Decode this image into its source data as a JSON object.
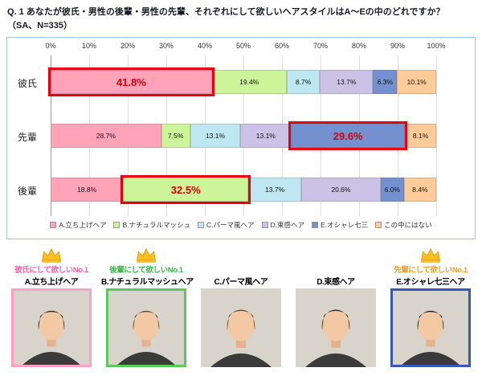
{
  "title": {
    "line1": "Q. 1 あなたが彼氏・男性の後輩・男性の先輩、それぞれにして欲しいヘアスタイルはA～Eの中のどれですか？",
    "line2": "（SA、N=335）"
  },
  "chart_data": {
    "type": "bar",
    "orientation": "horizontal_stacked",
    "x_ticks": [
      "0%",
      "10%",
      "20%",
      "30%",
      "40%",
      "50%",
      "60%",
      "70%",
      "80%",
      "90%",
      "100%"
    ],
    "xlim": [
      0,
      100
    ],
    "grid": true,
    "legend_position": "bottom",
    "categories": [
      "彼氏",
      "先輩",
      "後輩"
    ],
    "series": [
      {
        "name": "A.立ち上げヘア",
        "color": "#FFA3B8",
        "values": [
          41.8,
          28.7,
          18.8
        ]
      },
      {
        "name": "B.ナチュラルマッシュ",
        "color": "#CCF599",
        "values": [
          19.4,
          7.5,
          32.5
        ]
      },
      {
        "name": "C.パーマ風ヘア",
        "color": "#BEE7F2",
        "values": [
          8.7,
          13.1,
          13.7
        ]
      },
      {
        "name": "D.束感ヘア",
        "color": "#CCC2E6",
        "values": [
          13.7,
          13.1,
          20.6
        ]
      },
      {
        "name": "E.オシャレ七三",
        "color": "#7490CF",
        "values": [
          6.3,
          29.6,
          6.0
        ]
      },
      {
        "name": "この中にはない",
        "color": "#FFCC99",
        "values": [
          10.1,
          8.1,
          8.4
        ]
      }
    ],
    "highlights": [
      {
        "category": "彼氏",
        "series_index": 0,
        "value": 41.8
      },
      {
        "category": "先輩",
        "series_index": 4,
        "value": 29.6
      },
      {
        "category": "後輩",
        "series_index": 1,
        "value": 32.5
      }
    ]
  },
  "colors": {
    "highlight_border": "#E60012",
    "highlight_text": "#D7000F",
    "chart_box_border": "#9DC3E6",
    "crown_gold": "#FBBF24",
    "crown_outline": "#E09B00"
  },
  "cards": [
    {
      "crown": true,
      "rank_label": "彼氏にして欲しいNo.1",
      "rank_color": "#FF5FA2",
      "name": "A.立ち上げヘア",
      "photo_border": "#FF9EC6",
      "hair_color": "#241d18"
    },
    {
      "crown": true,
      "rank_label": "後輩にして欲しいNo.1",
      "rank_color": "#3CB54A",
      "name": "B.ナチュラルマッシュヘア",
      "photo_border": "#5BC85B",
      "hair_color": "#5a3a20"
    },
    {
      "crown": false,
      "rank_label": "",
      "rank_color": "",
      "name": "C.パーマ風ヘア",
      "photo_border": "",
      "hair_color": "#6b451f"
    },
    {
      "crown": false,
      "rank_label": "",
      "rank_color": "",
      "name": "D.束感ヘア",
      "photo_border": "",
      "hair_color": "#33261a"
    },
    {
      "crown": true,
      "rank_label": "先輩にして欲しいNo.1",
      "rank_color": "#F0A02F",
      "name": "E.オシャレ七三ヘア",
      "photo_border": "#3A57B5",
      "hair_color": "#17120e"
    }
  ]
}
